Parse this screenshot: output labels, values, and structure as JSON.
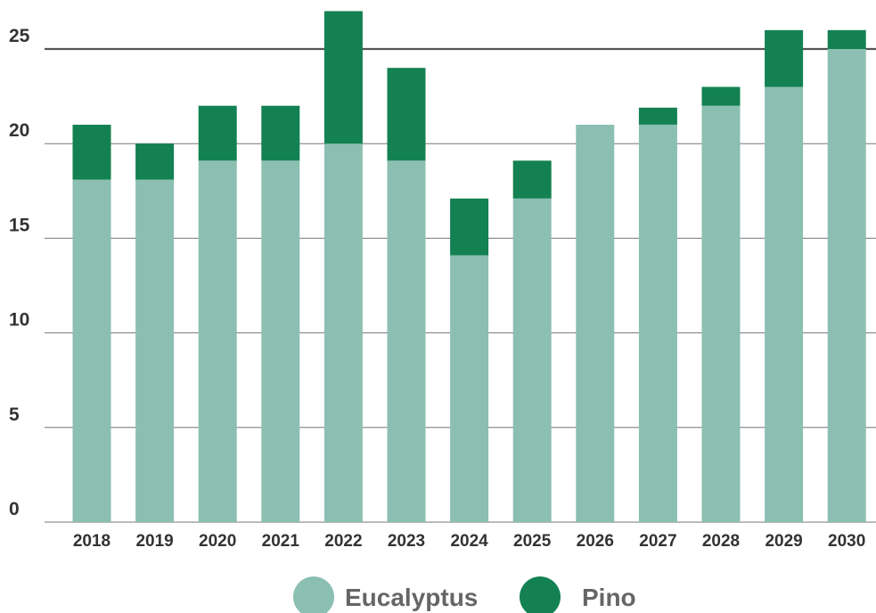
{
  "chart_data": {
    "type": "bar",
    "stacked": true,
    "title": "",
    "xlabel": "",
    "ylabel": "",
    "categories": [
      "2018",
      "2019",
      "2020",
      "2021",
      "2022",
      "2023",
      "2024",
      "2025",
      "2026",
      "2027",
      "2028",
      "2029",
      "2030"
    ],
    "series": [
      {
        "name": "Eucalyptus",
        "color": "#8bbfb1",
        "values": [
          18.1,
          18.1,
          19.1,
          19.1,
          20,
          19.1,
          14.1,
          17.1,
          21,
          21,
          22,
          23,
          25
        ]
      },
      {
        "name": "Pino",
        "color": "#138152",
        "values": [
          2.9,
          1.9,
          2.9,
          2.9,
          7,
          4.9,
          3,
          2,
          0,
          0.9,
          1,
          3,
          1
        ]
      }
    ],
    "ylim": [
      0,
      25
    ],
    "yticks": [
      "0",
      "5",
      "10",
      "15",
      "20",
      "25"
    ],
    "grid": true,
    "legend_position": "bottom"
  }
}
